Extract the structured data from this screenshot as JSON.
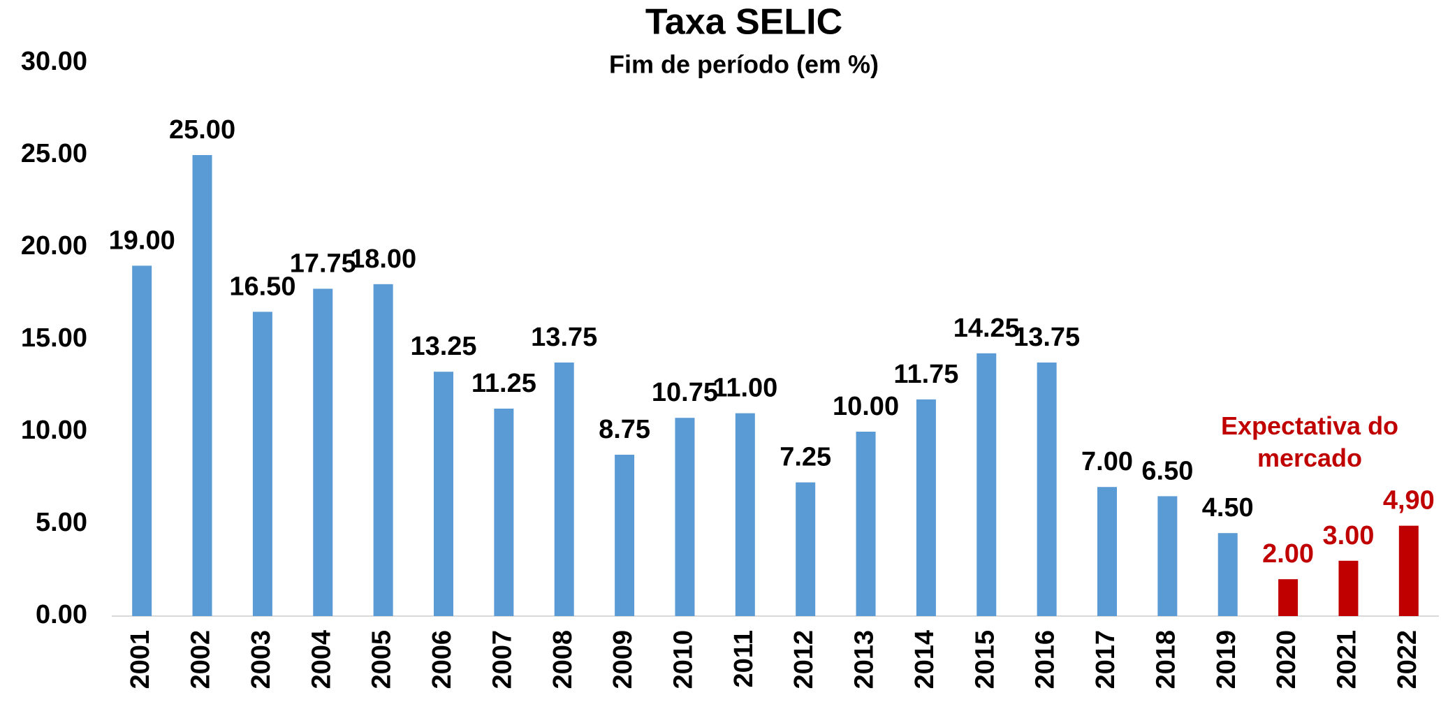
{
  "chart_data": {
    "type": "bar",
    "title": "Taxa SELIC",
    "subtitle": "Fim de período (em %)",
    "annotation": "Expectativa do mercado",
    "categories": [
      "2001",
      "2002",
      "2003",
      "2004",
      "2005",
      "2006",
      "2007",
      "2008",
      "2009",
      "2010",
      "2011",
      "2012",
      "2013",
      "2014",
      "2015",
      "2016",
      "2017",
      "2018",
      "2019",
      "2020",
      "2021",
      "2022"
    ],
    "values": [
      19,
      25,
      16.5,
      17.75,
      18,
      13.25,
      11.25,
      13.75,
      8.75,
      10.75,
      11,
      7.25,
      10,
      11.75,
      14.25,
      13.75,
      7,
      6.5,
      4.5,
      2,
      3,
      4.9
    ],
    "value_labels": [
      "19.00",
      "25.00",
      "16.50",
      "17.75",
      "18.00",
      "13.25",
      "11.25",
      "13.75",
      "8.75",
      "10.75",
      "11.00",
      "7.25",
      "10.00",
      "11.75",
      "14.25",
      "13.75",
      "7.00",
      "6.50",
      "4.50",
      "2.00",
      "3.00",
      "4,90"
    ],
    "colors": [
      "#5b9bd5",
      "#5b9bd5",
      "#5b9bd5",
      "#5b9bd5",
      "#5b9bd5",
      "#5b9bd5",
      "#5b9bd5",
      "#5b9bd5",
      "#5b9bd5",
      "#5b9bd5",
      "#5b9bd5",
      "#5b9bd5",
      "#5b9bd5",
      "#5b9bd5",
      "#5b9bd5",
      "#5b9bd5",
      "#5b9bd5",
      "#5b9bd5",
      "#5b9bd5",
      "#c00000",
      "#c00000",
      "#c00000"
    ],
    "ylim": [
      0,
      30
    ],
    "yticks": [
      {
        "value": 0,
        "label": "0.00"
      },
      {
        "value": 5,
        "label": "5.00"
      },
      {
        "value": 10,
        "label": "10.00"
      },
      {
        "value": 15,
        "label": "15.00"
      },
      {
        "value": 20,
        "label": "20.00"
      },
      {
        "value": 25,
        "label": "25.00"
      },
      {
        "value": 30,
        "label": "30.00"
      }
    ],
    "grid": false
  }
}
